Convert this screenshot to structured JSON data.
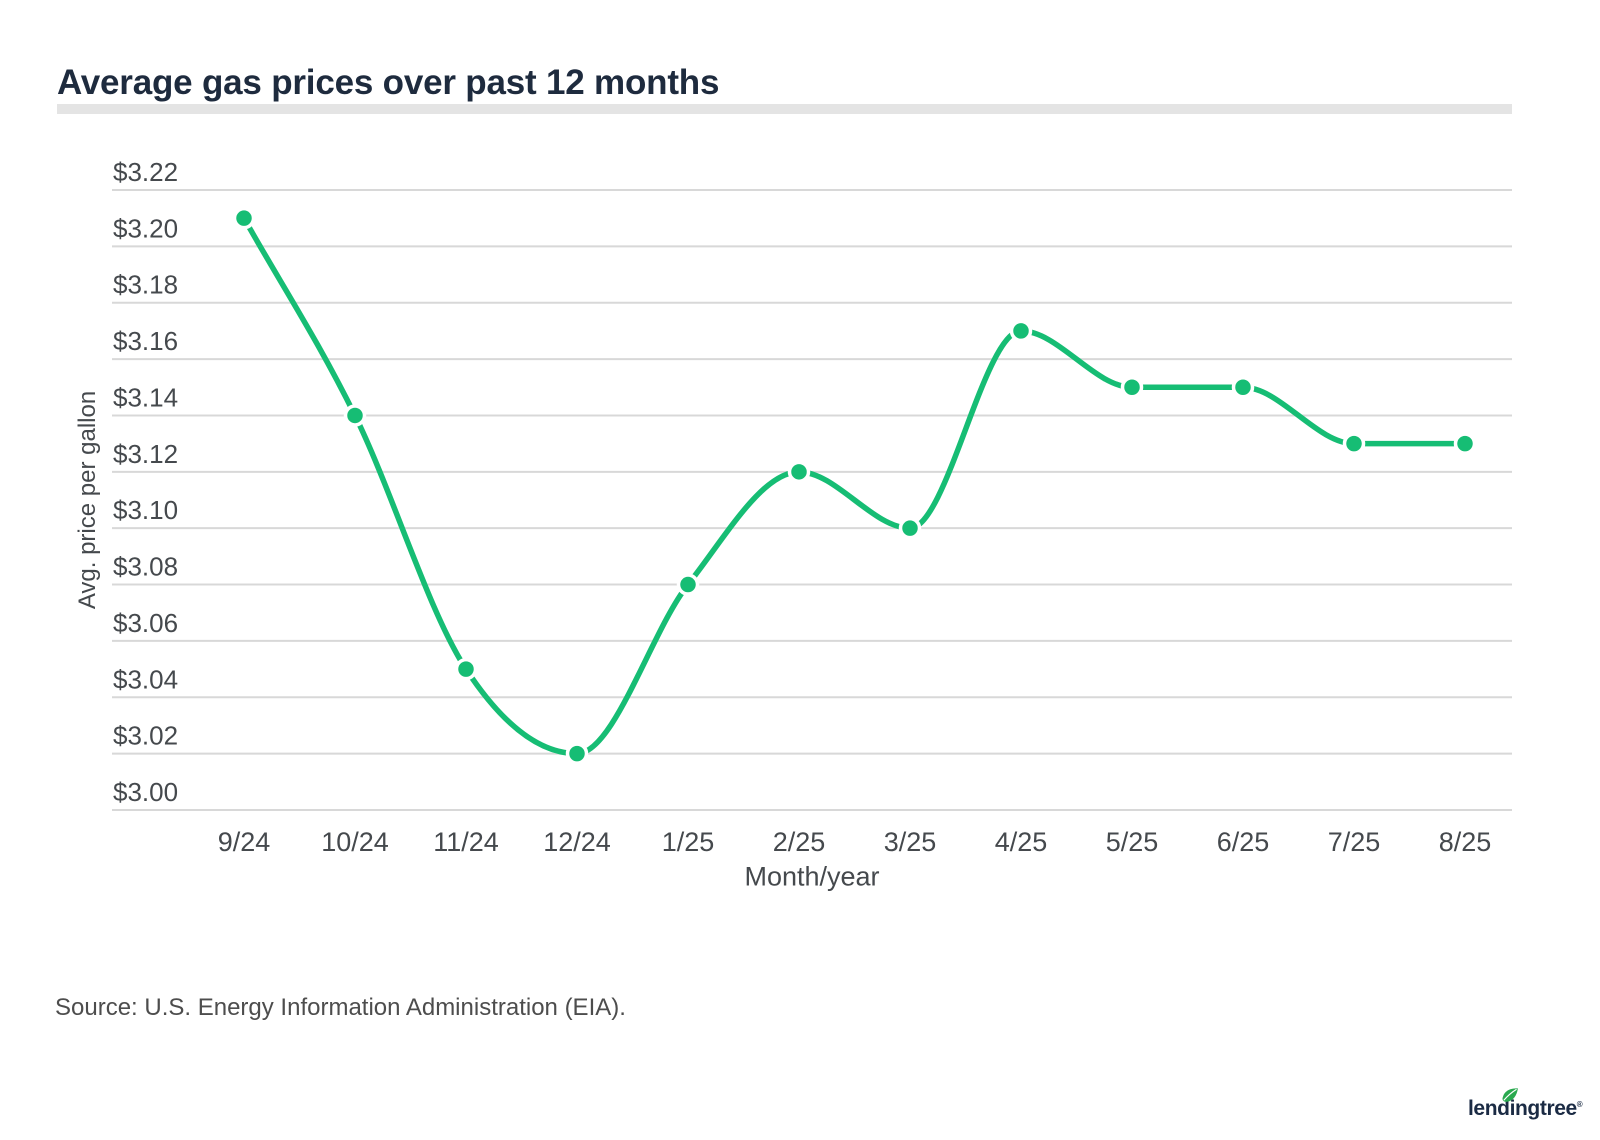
{
  "header": {
    "title": "Average gas prices over past 12 months"
  },
  "chart_data": {
    "type": "line",
    "title": "Average gas prices over past 12 months",
    "categories": [
      "9/24",
      "10/24",
      "11/24",
      "12/24",
      "1/25",
      "2/25",
      "3/25",
      "4/25",
      "5/25",
      "6/25",
      "7/25",
      "8/25"
    ],
    "values": [
      3.21,
      3.14,
      3.05,
      3.02,
      3.08,
      3.12,
      3.1,
      3.17,
      3.15,
      3.15,
      3.13,
      3.13
    ],
    "xlabel": "Month/year",
    "ylabel": "Avg. price per gallon",
    "ylim": [
      3.0,
      3.22
    ],
    "ytick_step": 0.02,
    "ytick_labels": [
      "$3.22",
      "$3.20",
      "$3.18",
      "$3.16",
      "$3.14",
      "$3.12",
      "$3.10",
      "$3.08",
      "$3.06",
      "$3.04",
      "$3.02",
      "$3.00"
    ],
    "grid": "horizontal-only",
    "legend": "none",
    "smooth": true,
    "marker": "circle",
    "line_color": "#16bd74",
    "grid_color": "#d8d8d8",
    "tick_label_color": "#45494d"
  },
  "source": {
    "text": "Source: U.S. Energy Information Administration (EIA)."
  },
  "logo": {
    "text": "lendingtree",
    "reg": "®",
    "text_color": "#1b2b44",
    "leaf_color": "#2aa94f"
  }
}
